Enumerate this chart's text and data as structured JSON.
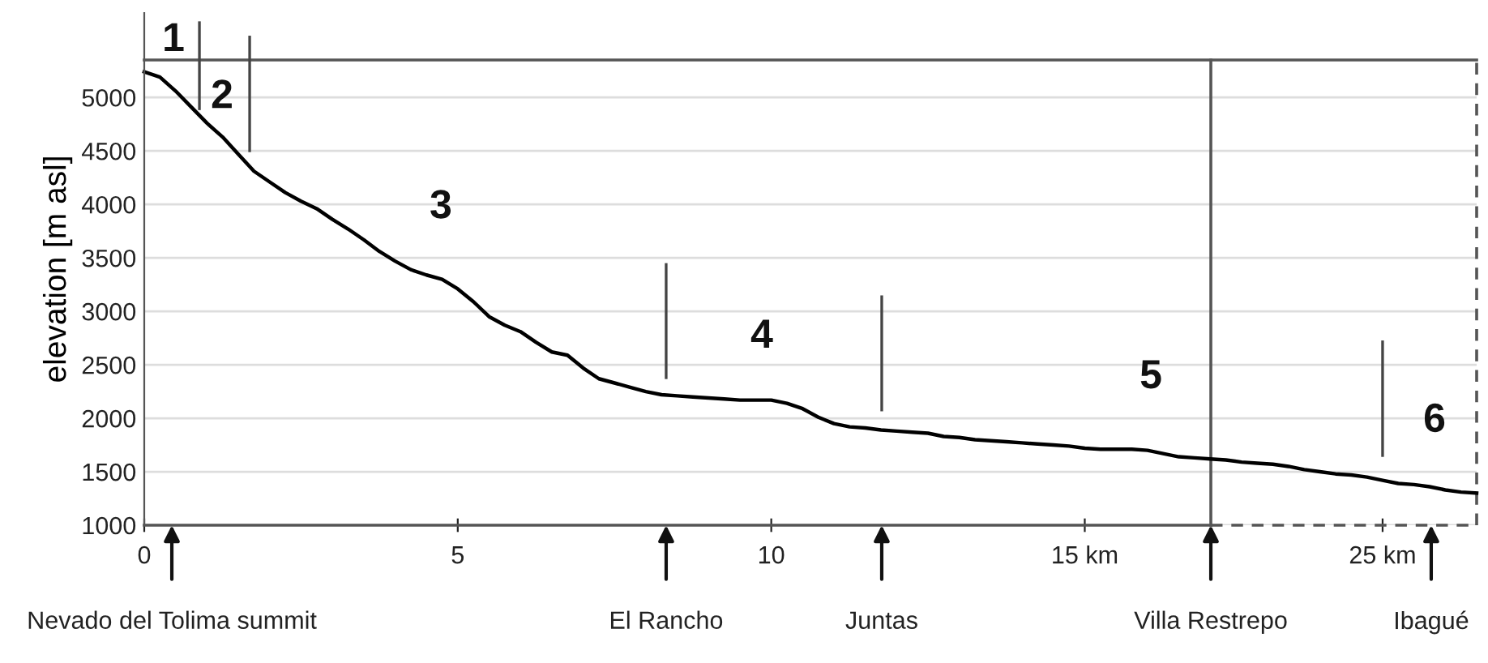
{
  "chart_data": {
    "type": "line",
    "ylabel": "elevation [m asl]",
    "categories": [
      "0",
      null,
      null,
      null,
      null,
      null,
      null,
      null,
      null,
      null,
      null,
      null,
      null,
      null,
      null,
      null,
      null,
      null,
      null,
      null,
      "5",
      null,
      null,
      null,
      null,
      null,
      null,
      null,
      null,
      null,
      null,
      null,
      null,
      null,
      null,
      null,
      null,
      null,
      null,
      null,
      "10",
      null,
      null,
      null,
      null,
      null,
      null,
      null,
      null,
      null,
      null,
      null,
      null,
      null,
      null,
      null,
      null,
      null,
      null,
      null,
      "15 km",
      null,
      null,
      null,
      null,
      null,
      null,
      null,
      null,
      null,
      null,
      null,
      null,
      null,
      null,
      null,
      null,
      null,
      null,
      "25 km",
      null,
      null,
      null,
      null,
      null,
      null
    ],
    "ylim": [
      1000,
      5790
    ],
    "yticks": [
      1000,
      1500,
      2000,
      2500,
      3000,
      3500,
      4000,
      4500,
      5000
    ],
    "grid": "y",
    "line_style": "solid",
    "marker": "none",
    "series": [
      {
        "color": "#000000",
        "values": [
          5240,
          5190,
          5060,
          4910,
          4760,
          4630,
          4470,
          4310,
          4210,
          4110,
          4030,
          3960,
          3860,
          3770,
          3670,
          3560,
          3470,
          3390,
          3340,
          3300,
          3210,
          3090,
          2950,
          2870,
          2810,
          2710,
          2620,
          2590,
          2470,
          2370,
          2330,
          2290,
          2250,
          2220,
          2210,
          2200,
          2190,
          2180,
          2170,
          2170,
          2170,
          2140,
          2090,
          2010,
          1950,
          1920,
          1910,
          1890,
          1880,
          1870,
          1860,
          1830,
          1820,
          1800,
          1790,
          1780,
          1770,
          1760,
          1750,
          1740,
          1720,
          1710,
          1710,
          1710,
          1700,
          1670,
          1640,
          1630,
          1620,
          1610,
          1590,
          1580,
          1570,
          1550,
          1520,
          1500,
          1480,
          1470,
          1450,
          1420,
          1390,
          1380,
          1360,
          1330,
          1310,
          1300
        ]
      }
    ],
    "ref_lines": [
      {
        "axis": "y",
        "value": 5350,
        "color": "#555555"
      }
    ],
    "annotations": [
      "1",
      "2",
      "3",
      "4",
      "5",
      "6",
      "Nevado del Tolima summit",
      "El Rancho",
      "Juntas",
      "Villa Restrepo",
      "Ibagué"
    ]
  }
}
